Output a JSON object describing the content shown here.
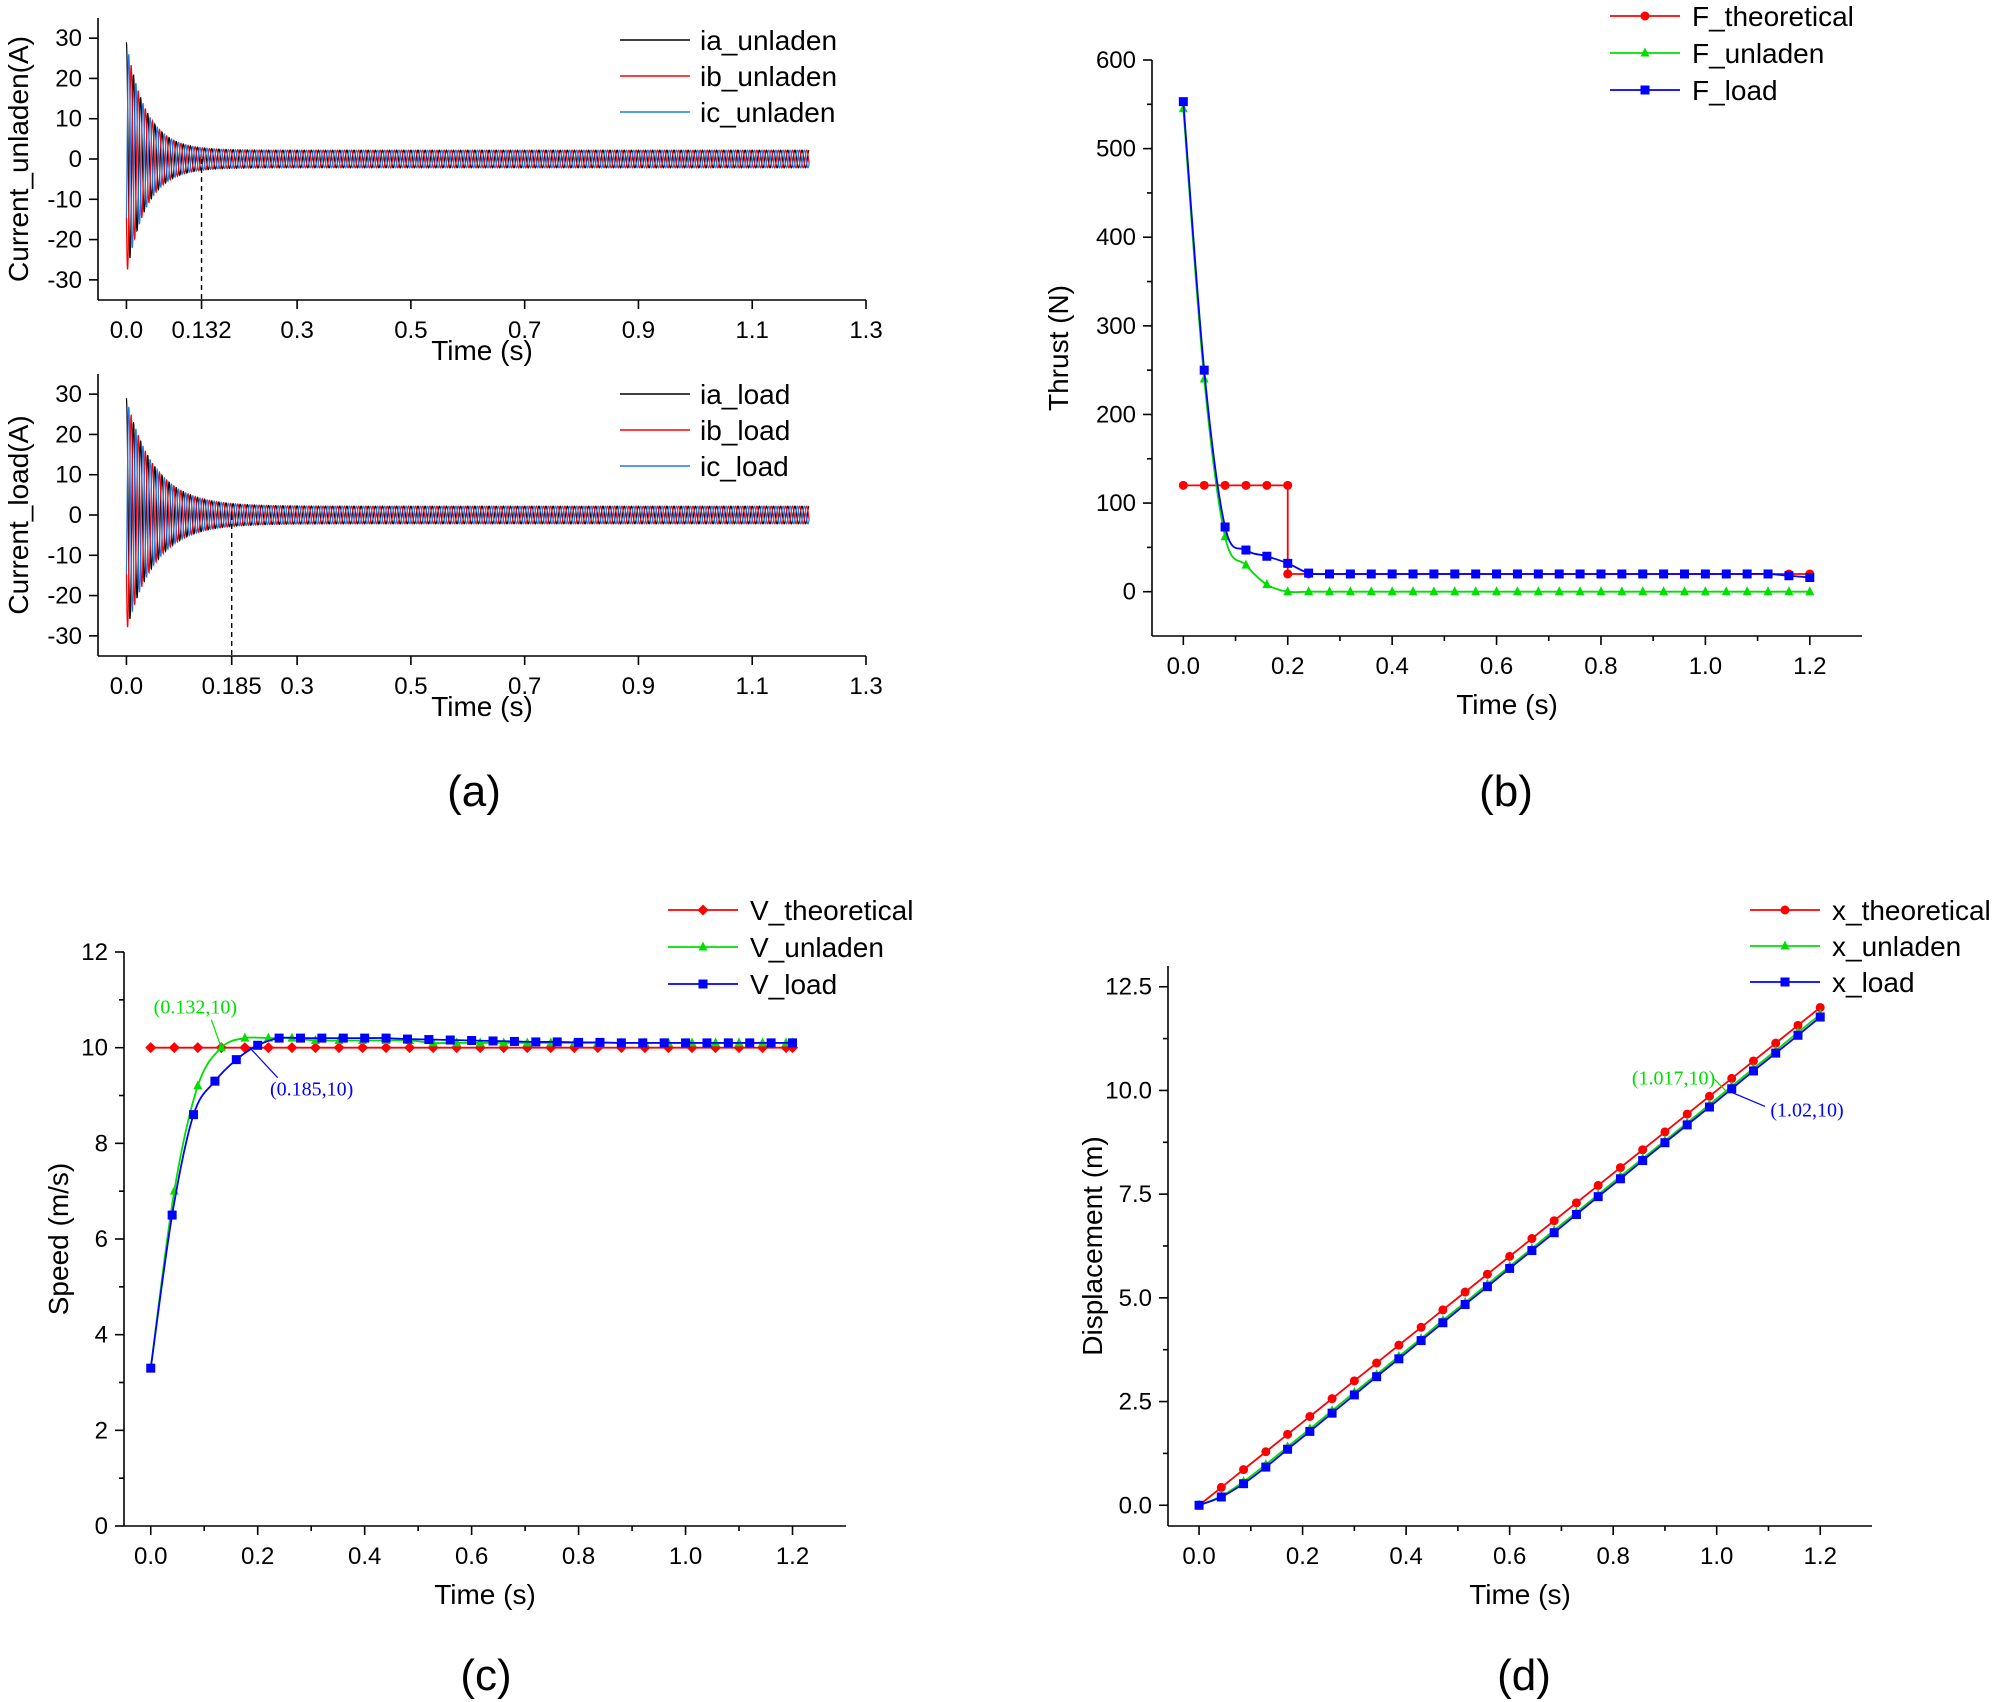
{
  "panel_labels": {
    "a": "(a)",
    "b": "(b)",
    "c": "(c)",
    "d": "(d)"
  },
  "colors": {
    "black": "#000000",
    "red": "#ff0000",
    "green": "#00e000",
    "blue": "#0000ff",
    "current_blue": "#1f77e8"
  },
  "chart_data": [
    {
      "id": "a1",
      "type": "line",
      "title": "",
      "xlabel": "Time (s)",
      "ylabel": "Current_unladen(A)",
      "xlim": [
        -0.05,
        1.3
      ],
      "ylim": [
        -35,
        35
      ],
      "xticks": [
        0.0,
        0.132,
        0.3,
        0.5,
        0.7,
        0.9,
        1.1,
        1.3
      ],
      "xtick_labels": [
        "0.0",
        "0.132",
        "0.3",
        "0.5",
        "0.7",
        "0.9",
        "1.1",
        "1.3"
      ],
      "yticks": [
        -30,
        -20,
        -10,
        0,
        10,
        20,
        30
      ],
      "ytick_labels": [
        "-30",
        "-20",
        "-10",
        "0",
        "10",
        "20",
        "30"
      ],
      "legend": [
        "ia_unladen",
        "ib_unladen",
        "ic_unladen"
      ],
      "legend_position": "top-right",
      "signal": {
        "t_end": 1.2,
        "peak": 29,
        "steady_amplitude": 2.2,
        "decay_tau": 0.035
      },
      "marker_line_x": 0.132
    },
    {
      "id": "a2",
      "type": "line",
      "title": "",
      "xlabel": "Time (s)",
      "ylabel": "Current_load(A)",
      "xlim": [
        -0.05,
        1.3
      ],
      "ylim": [
        -35,
        35
      ],
      "xticks": [
        0.0,
        0.185,
        0.3,
        0.5,
        0.7,
        0.9,
        1.1,
        1.3
      ],
      "xtick_labels": [
        "0.0",
        "0.185",
        "0.3",
        "0.5",
        "0.7",
        "0.9",
        "1.1",
        "1.3"
      ],
      "yticks": [
        -30,
        -20,
        -10,
        0,
        10,
        20,
        30
      ],
      "ytick_labels": [
        "-30",
        "-20",
        "-10",
        "0",
        "10",
        "20",
        "30"
      ],
      "legend": [
        "ia_load",
        "ib_load",
        "ic_load"
      ],
      "legend_position": "top-right",
      "signal": {
        "t_end": 1.2,
        "peak": 29,
        "steady_amplitude": 2.2,
        "decay_tau": 0.05
      },
      "marker_line_x": 0.185
    },
    {
      "id": "b",
      "type": "line",
      "title": "",
      "xlabel": "Time (s)",
      "ylabel": "Thrust (N)",
      "xlim": [
        -0.06,
        1.3
      ],
      "ylim": [
        -50,
        600
      ],
      "xticks": [
        0.0,
        0.2,
        0.4,
        0.6,
        0.8,
        1.0,
        1.2
      ],
      "xtick_labels": [
        "0.0",
        "0.2",
        "0.4",
        "0.6",
        "0.8",
        "1.0",
        "1.2"
      ],
      "yticks": [
        0,
        100,
        200,
        300,
        400,
        500,
        600
      ],
      "ytick_labels": [
        "0",
        "100",
        "200",
        "300",
        "400",
        "500",
        "600"
      ],
      "legend_position": "top-right",
      "series": [
        {
          "name": "F_theoretical",
          "color": "red",
          "marker": "circle",
          "x": [
            0.0,
            0.04,
            0.08,
            0.12,
            0.16,
            0.2,
            0.2,
            0.24,
            0.28,
            0.32,
            0.36,
            0.4,
            0.44,
            0.48,
            0.52,
            0.56,
            0.6,
            0.64,
            0.68,
            0.72,
            0.76,
            0.8,
            0.84,
            0.88,
            0.92,
            0.96,
            1.0,
            1.04,
            1.08,
            1.12,
            1.16,
            1.2
          ],
          "y": [
            120,
            120,
            120,
            120,
            120,
            120,
            20,
            20,
            20,
            20,
            20,
            20,
            20,
            20,
            20,
            20,
            20,
            20,
            20,
            20,
            20,
            20,
            20,
            20,
            20,
            20,
            20,
            20,
            20,
            20,
            20,
            20
          ]
        },
        {
          "name": "F_unladen",
          "color": "green",
          "marker": "triangle",
          "x": [
            0.0,
            0.04,
            0.08,
            0.12,
            0.16,
            0.2,
            0.24,
            0.28,
            0.32,
            0.36,
            0.4,
            0.44,
            0.48,
            0.52,
            0.56,
            0.6,
            0.64,
            0.68,
            0.72,
            0.76,
            0.8,
            0.84,
            0.88,
            0.92,
            0.96,
            1.0,
            1.04,
            1.08,
            1.12,
            1.16,
            1.2
          ],
          "y": [
            545,
            240,
            62,
            30,
            8,
            0,
            0,
            0,
            0,
            0,
            0,
            0,
            0,
            0,
            0,
            0,
            0,
            0,
            0,
            0,
            0,
            0,
            0,
            0,
            0,
            0,
            0,
            0,
            0,
            0,
            0
          ]
        },
        {
          "name": "F_load",
          "color": "blue",
          "marker": "square",
          "x": [
            0.0,
            0.04,
            0.08,
            0.12,
            0.16,
            0.2,
            0.24,
            0.28,
            0.32,
            0.36,
            0.4,
            0.44,
            0.48,
            0.52,
            0.56,
            0.6,
            0.64,
            0.68,
            0.72,
            0.76,
            0.8,
            0.84,
            0.88,
            0.92,
            0.96,
            1.0,
            1.04,
            1.08,
            1.12,
            1.16,
            1.2
          ],
          "y": [
            553,
            250,
            73,
            47,
            40,
            32,
            21,
            20,
            20,
            20,
            20,
            20,
            20,
            20,
            20,
            20,
            20,
            20,
            20,
            20,
            20,
            20,
            20,
            20,
            20,
            20,
            20,
            20,
            20,
            18,
            16
          ]
        }
      ]
    },
    {
      "id": "c",
      "type": "line",
      "title": "",
      "xlabel": "Time (s)",
      "ylabel": "Speed (m/s)",
      "xlim": [
        -0.05,
        1.3
      ],
      "ylim": [
        0,
        12
      ],
      "xticks": [
        0.0,
        0.2,
        0.4,
        0.6,
        0.8,
        1.0,
        1.2
      ],
      "xtick_labels": [
        "0.0",
        "0.2",
        "0.4",
        "0.6",
        "0.8",
        "1.0",
        "1.2"
      ],
      "yticks": [
        0,
        2,
        4,
        6,
        8,
        10,
        12
      ],
      "ytick_labels": [
        "0",
        "2",
        "4",
        "6",
        "8",
        "10",
        "12"
      ],
      "legend_position": "top-right",
      "series": [
        {
          "name": "V_theoretical",
          "color": "red",
          "marker": "diamond",
          "x": [
            0.0,
            0.044,
            0.088,
            0.132,
            0.176,
            0.22,
            0.264,
            0.308,
            0.352,
            0.396,
            0.44,
            0.484,
            0.528,
            0.572,
            0.616,
            0.66,
            0.704,
            0.748,
            0.792,
            0.836,
            0.88,
            0.924,
            0.968,
            1.012,
            1.056,
            1.1,
            1.144,
            1.188,
            1.2
          ],
          "y": [
            10,
            10,
            10,
            10,
            10,
            10,
            10,
            10,
            10,
            10,
            10,
            10,
            10,
            10,
            10,
            10,
            10,
            10,
            10,
            10,
            10,
            10,
            10,
            10,
            10,
            10,
            10,
            10,
            10
          ]
        },
        {
          "name": "V_unladen",
          "color": "green",
          "marker": "triangle",
          "x": [
            0.0,
            0.044,
            0.088,
            0.132,
            0.176,
            0.22,
            0.264,
            0.308,
            0.352,
            0.396,
            0.44,
            0.484,
            0.528,
            0.572,
            0.616,
            0.66,
            0.704,
            0.748,
            0.792,
            0.836,
            0.88,
            0.924,
            0.968,
            1.012,
            1.056,
            1.1,
            1.144,
            1.188,
            1.2
          ],
          "y": [
            3.3,
            7.0,
            9.2,
            10.0,
            10.2,
            10.2,
            10.2,
            10.15,
            10.15,
            10.15,
            10.15,
            10.15,
            10.1,
            10.1,
            10.1,
            10.1,
            10.1,
            10.1,
            10.1,
            10.1,
            10.1,
            10.1,
            10.1,
            10.1,
            10.1,
            10.1,
            10.1,
            10.1,
            10.1
          ]
        },
        {
          "name": "V_load",
          "color": "blue",
          "marker": "square",
          "x": [
            0.0,
            0.04,
            0.08,
            0.12,
            0.16,
            0.2,
            0.24,
            0.28,
            0.32,
            0.36,
            0.4,
            0.44,
            0.48,
            0.52,
            0.56,
            0.6,
            0.64,
            0.68,
            0.72,
            0.76,
            0.8,
            0.84,
            0.88,
            0.92,
            0.96,
            1.0,
            1.04,
            1.08,
            1.12,
            1.16,
            1.2
          ],
          "y": [
            3.3,
            6.5,
            8.6,
            9.3,
            9.75,
            10.05,
            10.2,
            10.2,
            10.2,
            10.2,
            10.2,
            10.2,
            10.18,
            10.17,
            10.16,
            10.15,
            10.14,
            10.13,
            10.12,
            10.12,
            10.11,
            10.11,
            10.1,
            10.1,
            10.1,
            10.1,
            10.1,
            10.1,
            10.1,
            10.1,
            10.1
          ]
        }
      ],
      "annotations": [
        {
          "text": "(0.132,10)",
          "color": "green",
          "point": [
            0.132,
            10
          ]
        },
        {
          "text": "(0.185,10)",
          "color": "blue",
          "point": [
            0.185,
            10
          ]
        }
      ]
    },
    {
      "id": "d",
      "type": "line",
      "title": "",
      "xlabel": "Time (s)",
      "ylabel": "Displacement (m)",
      "xlim": [
        -0.06,
        1.3
      ],
      "ylim": [
        -0.5,
        13
      ],
      "xticks": [
        0.0,
        0.2,
        0.4,
        0.6,
        0.8,
        1.0,
        1.2
      ],
      "xtick_labels": [
        "0.0",
        "0.2",
        "0.4",
        "0.6",
        "0.8",
        "1.0",
        "1.2"
      ],
      "yticks": [
        0.0,
        2.5,
        5.0,
        7.5,
        10.0,
        12.5
      ],
      "ytick_labels": [
        "0.0",
        "2.5",
        "5.0",
        "7.5",
        "10.0",
        "12.5"
      ],
      "legend_position": "top-right",
      "series": [
        {
          "name": "x_theoretical",
          "color": "red",
          "marker": "circle",
          "x": [
            0.0,
            0.043,
            0.086,
            0.129,
            0.171,
            0.214,
            0.257,
            0.3,
            0.343,
            0.386,
            0.429,
            0.471,
            0.514,
            0.557,
            0.6,
            0.643,
            0.686,
            0.729,
            0.771,
            0.814,
            0.857,
            0.9,
            0.943,
            0.986,
            1.029,
            1.071,
            1.114,
            1.157,
            1.2
          ],
          "y": [
            0.0,
            0.43,
            0.86,
            1.29,
            1.71,
            2.14,
            2.57,
            3.0,
            3.43,
            3.86,
            4.29,
            4.71,
            5.14,
            5.57,
            6.0,
            6.43,
            6.86,
            7.29,
            7.71,
            8.14,
            8.57,
            9.0,
            9.43,
            9.86,
            10.29,
            10.71,
            11.14,
            11.57,
            12.0
          ]
        },
        {
          "name": "x_unladen",
          "color": "green",
          "marker": "triangle",
          "x": [
            0.0,
            0.043,
            0.086,
            0.129,
            0.171,
            0.214,
            0.257,
            0.3,
            0.343,
            0.386,
            0.429,
            0.471,
            0.514,
            0.557,
            0.6,
            0.643,
            0.686,
            0.729,
            0.771,
            0.814,
            0.857,
            0.9,
            0.943,
            0.986,
            1.029,
            1.071,
            1.114,
            1.157,
            1.2
          ],
          "y": [
            0.0,
            0.22,
            0.57,
            0.98,
            1.41,
            1.84,
            2.28,
            2.72,
            3.15,
            3.59,
            4.02,
            4.46,
            4.89,
            5.33,
            5.76,
            6.19,
            6.63,
            7.06,
            7.49,
            7.93,
            8.36,
            8.79,
            9.22,
            9.66,
            10.1,
            10.53,
            10.96,
            11.4,
            11.83
          ]
        },
        {
          "name": "x_load",
          "color": "blue",
          "marker": "square",
          "x": [
            0.0,
            0.043,
            0.086,
            0.129,
            0.171,
            0.214,
            0.257,
            0.3,
            0.343,
            0.386,
            0.429,
            0.471,
            0.514,
            0.557,
            0.6,
            0.643,
            0.686,
            0.729,
            0.771,
            0.814,
            0.857,
            0.9,
            0.943,
            0.986,
            1.029,
            1.071,
            1.114,
            1.157,
            1.2
          ],
          "y": [
            0.0,
            0.2,
            0.52,
            0.92,
            1.35,
            1.78,
            2.22,
            2.66,
            3.1,
            3.53,
            3.97,
            4.4,
            4.84,
            5.27,
            5.71,
            6.14,
            6.57,
            7.01,
            7.44,
            7.87,
            8.31,
            8.74,
            9.17,
            9.6,
            10.04,
            10.47,
            10.9,
            11.33,
            11.77
          ]
        }
      ],
      "annotations": [
        {
          "text": "(1.017,10)",
          "color": "green",
          "point": [
            1.017,
            10
          ]
        },
        {
          "text": "(1.02,10)",
          "color": "blue",
          "point": [
            1.02,
            10
          ]
        }
      ]
    }
  ]
}
